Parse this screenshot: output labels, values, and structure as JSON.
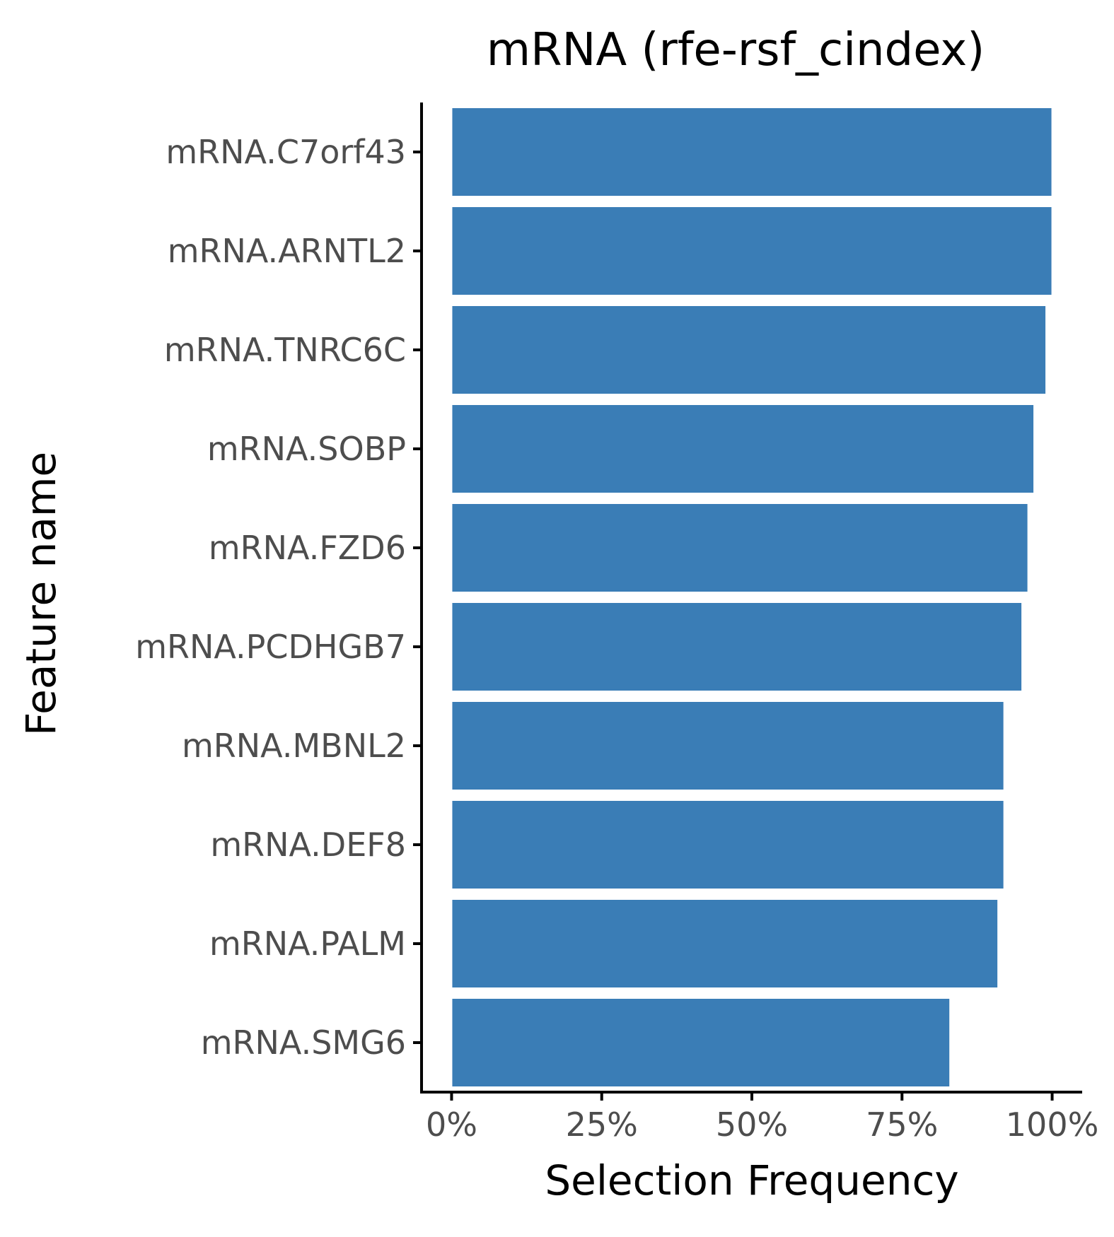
{
  "chart_data": {
    "type": "bar",
    "orientation": "horizontal",
    "title": "mRNA (rfe-rsf_cindex)",
    "xlabel": "Selection Frequency",
    "ylabel": "Feature name",
    "categories": [
      "mRNA.C7orf43",
      "mRNA.ARNTL2",
      "mRNA.TNRC6C",
      "mRNA.SOBP",
      "mRNA.FZD6",
      "mRNA.PCDHGB7",
      "mRNA.MBNL2",
      "mRNA.DEF8",
      "mRNA.PALM",
      "mRNA.SMG6"
    ],
    "values": [
      1.0,
      1.0,
      0.99,
      0.97,
      0.96,
      0.95,
      0.92,
      0.92,
      0.91,
      0.83
    ],
    "xticks": [
      0,
      0.25,
      0.5,
      0.75,
      1.0
    ],
    "xtick_labels": [
      "0%",
      "25%",
      "50%",
      "75%",
      "100%"
    ],
    "xlim": [
      -0.05,
      1.05
    ],
    "grid": false,
    "bar_color": "#3A7DB6"
  }
}
